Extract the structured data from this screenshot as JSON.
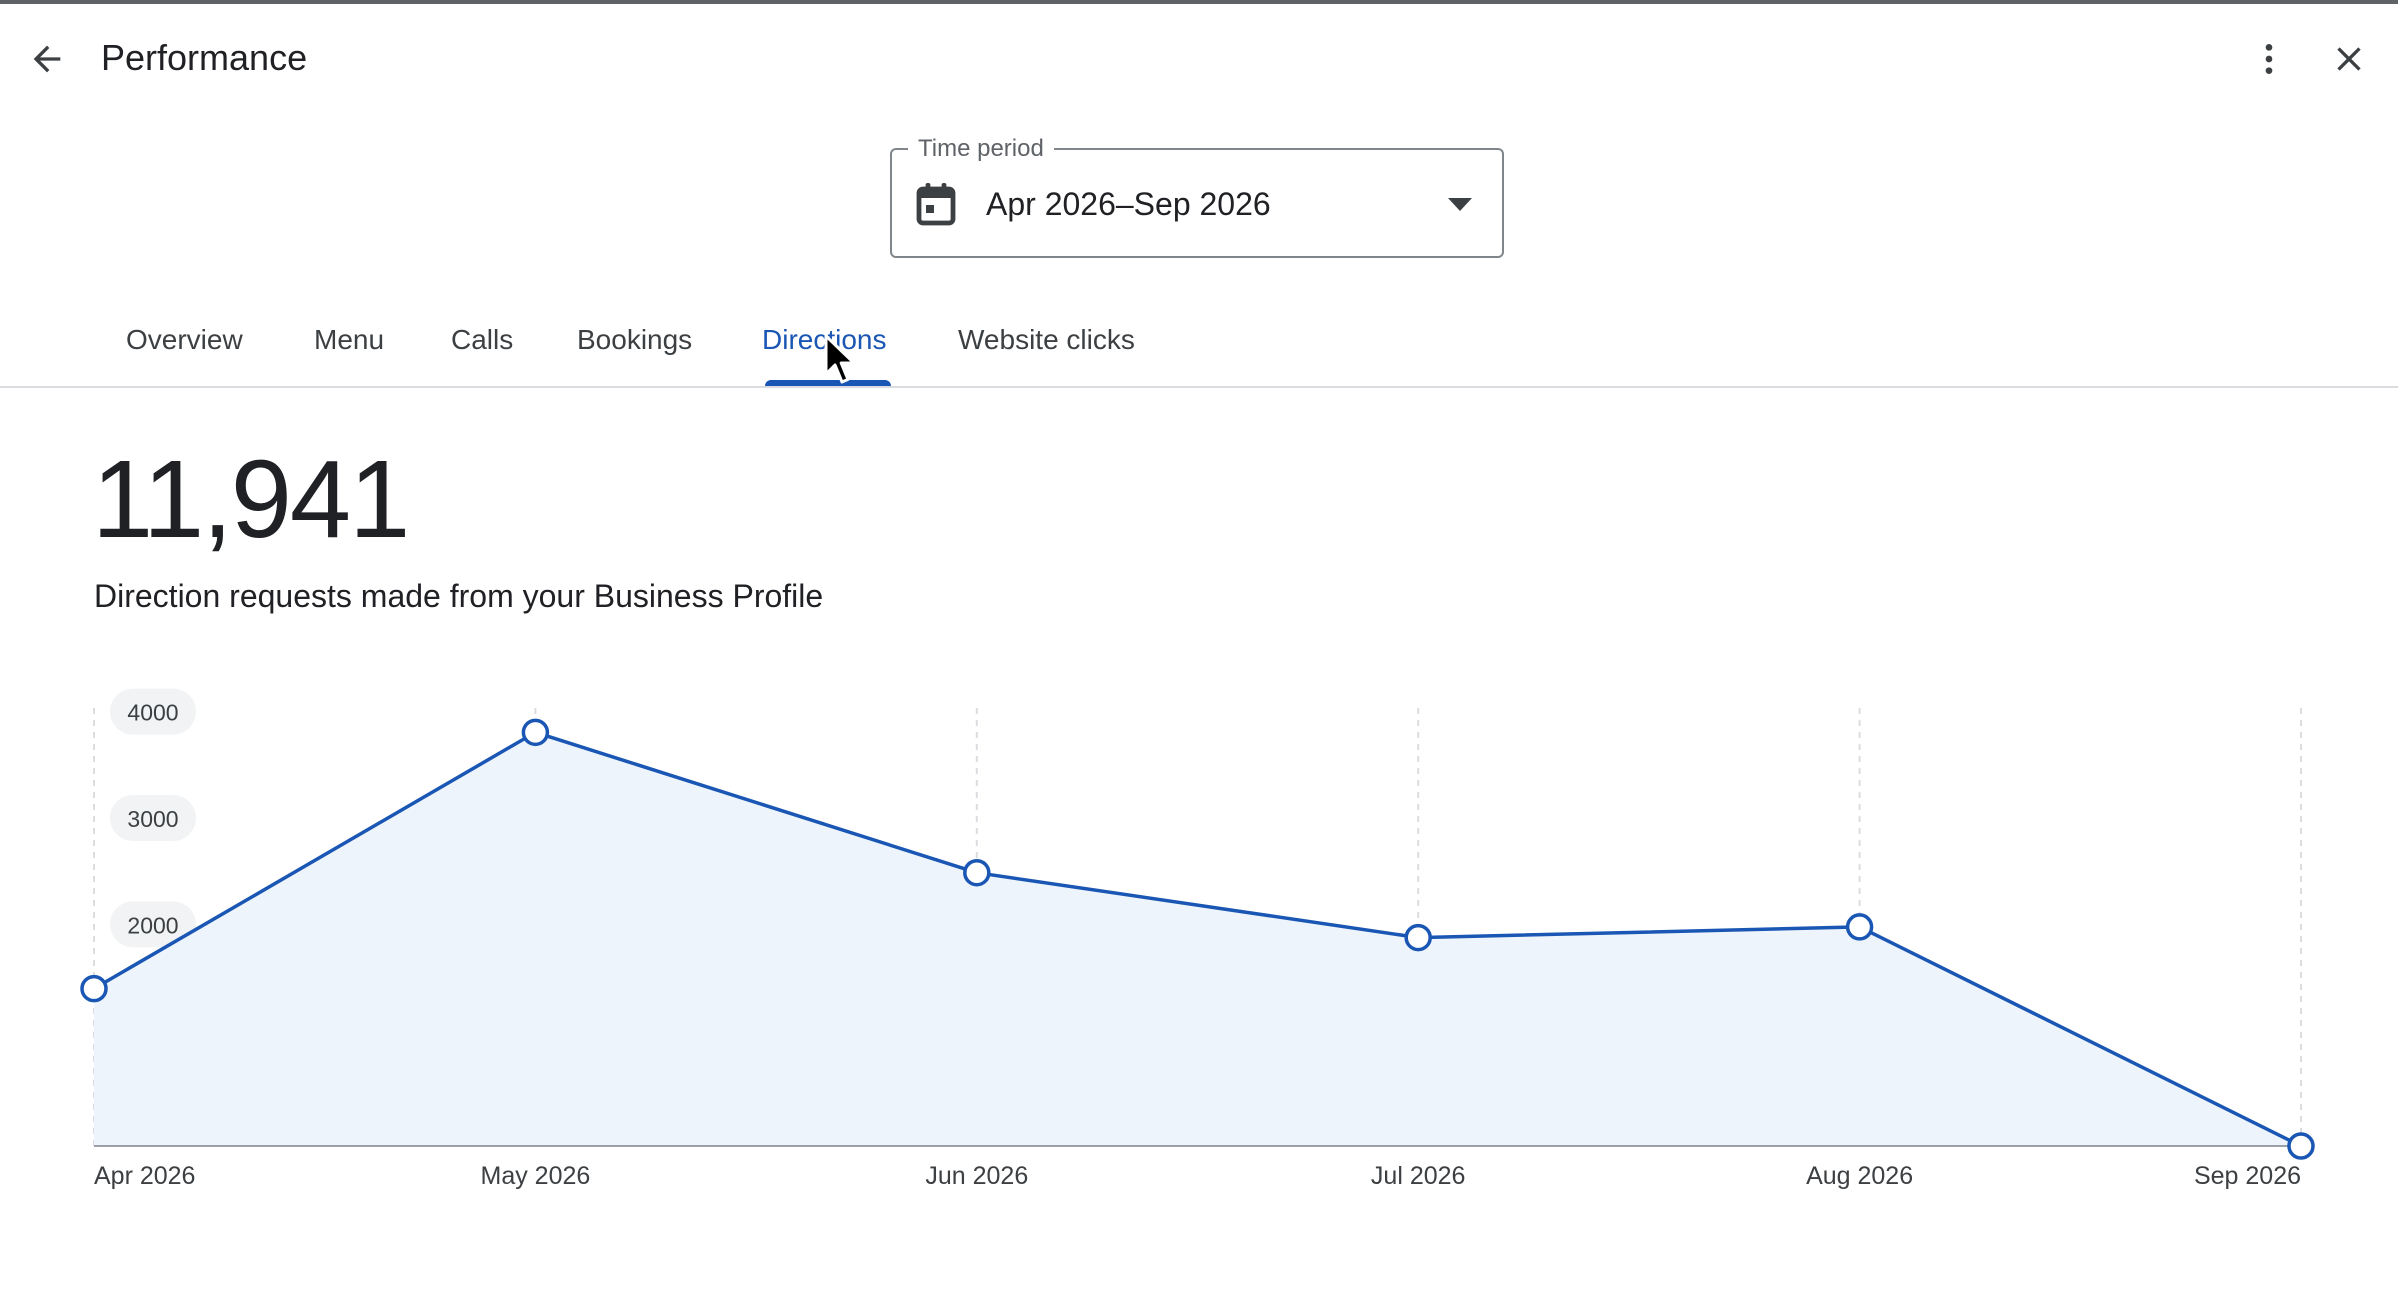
{
  "header": {
    "title": "Performance",
    "back_icon": "arrow-back-icon",
    "more_icon": "more-vert-icon",
    "close_icon": "close-icon"
  },
  "time_period": {
    "label": "Time period",
    "value": "Apr 2026–Sep 2026",
    "icon": "calendar-icon"
  },
  "tabs": [
    {
      "label": "Overview"
    },
    {
      "label": "Menu"
    },
    {
      "label": "Calls"
    },
    {
      "label": "Bookings"
    },
    {
      "label": "Directions",
      "active": true
    },
    {
      "label": "Website clicks"
    }
  ],
  "summary": {
    "total": "11,941",
    "description": "Direction requests made from your Business Profile"
  },
  "colors": {
    "accent": "#1a56b3",
    "area_fill": "#eef4fc"
  },
  "chart_data": {
    "type": "area",
    "categories": [
      "Apr 2026",
      "May 2026",
      "Jun 2026",
      "Jul 2026",
      "Aug 2026",
      "Sep 2026"
    ],
    "series": [
      {
        "values": [
          1480,
          3890,
          2570,
          1960,
          2060,
          0
        ]
      }
    ],
    "yticks": [
      "1000",
      "2000",
      "3000",
      "4000"
    ],
    "ylim": [
      0,
      4100
    ],
    "grid": "vertical-dashed",
    "xlabel": "",
    "ylabel": ""
  }
}
